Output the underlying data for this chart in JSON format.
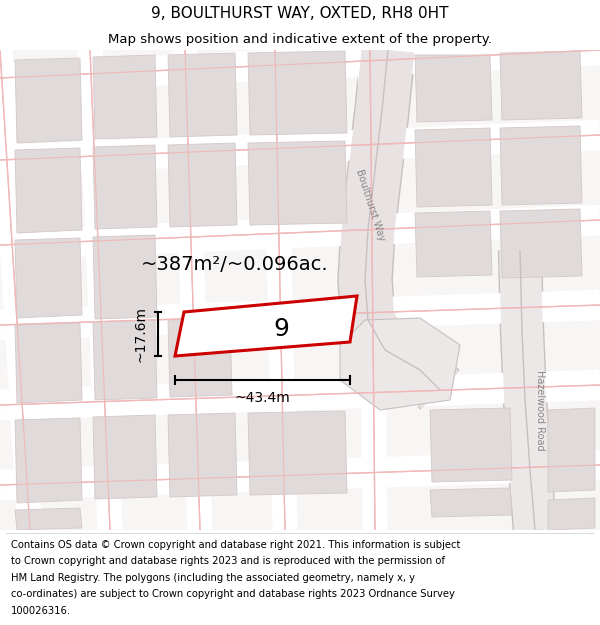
{
  "title_line1": "9, BOULTHURST WAY, OXTED, RH8 0HT",
  "title_line2": "Map shows position and indicative extent of the property.",
  "footer_lines": [
    "Contains OS data © Crown copyright and database right 2021. This information is subject",
    "to Crown copyright and database rights 2023 and is reproduced with the permission of",
    "HM Land Registry. The polygons (including the associated geometry, namely x, y",
    "co-ordinates) are subject to Crown copyright and database rights 2023 Ordnance Survey",
    "100026316."
  ],
  "area_label": "~387m²/~0.096ac.",
  "width_label": "~43.4m",
  "height_label": "~17.6m",
  "plot_number": "9",
  "map_bg": "#f9f7f7",
  "road_bg": "#ffffff",
  "block_fill": "#e0dada",
  "block_edge": "#d4c8c8",
  "road_line": "#f0b8b8",
  "road_grey": "#c8c0c0",
  "plot_edge": "#cc0000",
  "plot_fill": "#ffffff",
  "title_fontsize": 11,
  "subtitle_fontsize": 9.5,
  "footer_fontsize": 7.2,
  "area_fontsize": 14,
  "dim_fontsize": 10,
  "road_label_fontsize": 7,
  "plot_num_fontsize": 18
}
